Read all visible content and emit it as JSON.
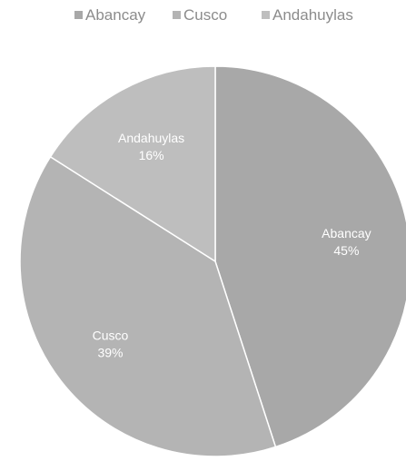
{
  "chart_data": {
    "type": "pie",
    "categories": [
      "Abancay",
      "Cusco",
      "Andahuylas"
    ],
    "values": [
      45,
      39,
      16
    ],
    "labels": [
      "45%",
      "39%",
      "16%"
    ],
    "colors": [
      "#a8a8a8",
      "#b4b4b4",
      "#bebebe"
    ],
    "start_angle_deg": 0,
    "direction": "clockwise",
    "legend_position": "top",
    "title": ""
  }
}
